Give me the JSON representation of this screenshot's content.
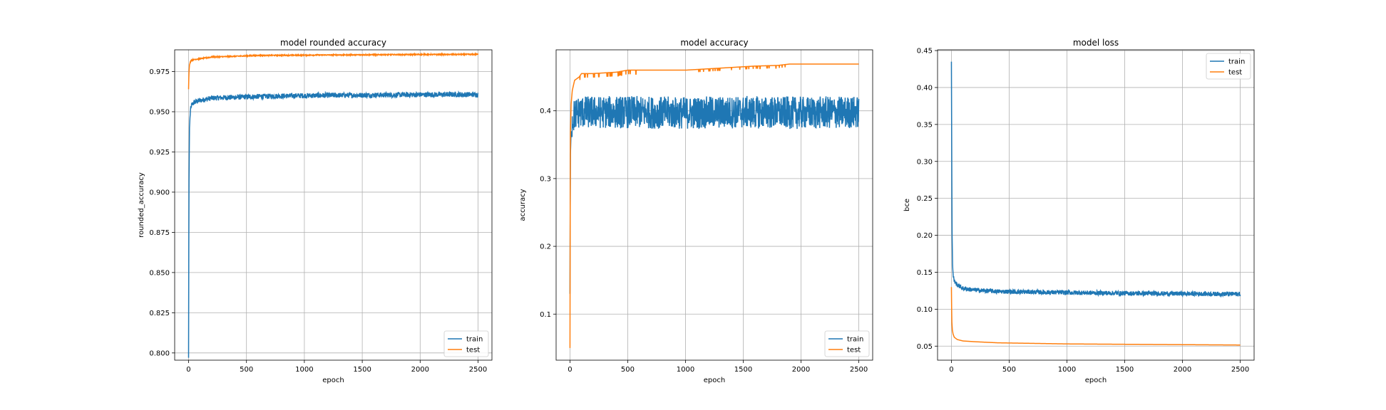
{
  "colors": {
    "train": "#1f77b4",
    "test": "#ff7f0e",
    "grid": "#b0b0b0",
    "axis": "#000000"
  },
  "chart_data": [
    {
      "type": "line",
      "title": "model rounded accuracy",
      "xlabel": "epoch",
      "ylabel": "rounded_accuracy",
      "xlim": [
        -120,
        2620
      ],
      "ylim": [
        0.7955,
        0.9885
      ],
      "xticks": [
        0,
        500,
        1000,
        1500,
        2000,
        2500
      ],
      "yticks": [
        0.8,
        0.825,
        0.85,
        0.875,
        0.9,
        0.925,
        0.95,
        0.975
      ],
      "ytick_labels": [
        "0.800",
        "0.825",
        "0.850",
        "0.875",
        "0.900",
        "0.925",
        "0.950",
        "0.975"
      ],
      "grid": true,
      "legend": "lower-right",
      "series": [
        {
          "name": "train",
          "color": "#1f77b4",
          "noise": 0.0008,
          "x": [
            0,
            3,
            8,
            15,
            25,
            50,
            100,
            200,
            400,
            600,
            800,
            1000,
            1200,
            1500,
            1800,
            2000,
            2200,
            2500
          ],
          "y": [
            0.797,
            0.9,
            0.94,
            0.95,
            0.954,
            0.956,
            0.957,
            0.9585,
            0.959,
            0.9595,
            0.9598,
            0.96,
            0.9602,
            0.9603,
            0.9605,
            0.9606,
            0.9607,
            0.9607
          ]
        },
        {
          "name": "test",
          "color": "#ff7f0e",
          "noise": 0.00015,
          "x": [
            0,
            3,
            8,
            15,
            25,
            50,
            100,
            200,
            400,
            600,
            800,
            1000,
            1200,
            1500,
            1800,
            2000,
            2200,
            2500
          ],
          "y": [
            0.964,
            0.974,
            0.979,
            0.981,
            0.982,
            0.9825,
            0.983,
            0.984,
            0.9845,
            0.985,
            0.9851,
            0.9852,
            0.9853,
            0.9854,
            0.9855,
            0.9856,
            0.9856,
            0.9857
          ]
        }
      ]
    },
    {
      "type": "line",
      "title": "model accuracy",
      "xlabel": "epoch",
      "ylabel": "accuracy",
      "xlim": [
        -120,
        2620
      ],
      "ylim": [
        0.032,
        0.49
      ],
      "xticks": [
        0,
        500,
        1000,
        1500,
        2000,
        2500
      ],
      "yticks": [
        0.1,
        0.2,
        0.3,
        0.4
      ],
      "ytick_labels": [
        "0.1",
        "0.2",
        "0.3",
        "0.4"
      ],
      "grid": true,
      "legend": "lower-right",
      "series": [
        {
          "name": "train",
          "color": "#1f77b4",
          "noise": 0.012,
          "x": [
            0,
            3,
            10,
            20,
            40,
            80,
            200,
            500,
            1000,
            1500,
            2000,
            2500
          ],
          "y": [
            0.13,
            0.33,
            0.37,
            0.385,
            0.395,
            0.398,
            0.398,
            0.398,
            0.397,
            0.398,
            0.397,
            0.398
          ]
        },
        {
          "name": "test",
          "color": "#ff7f0e",
          "noise": 0.0,
          "x": [
            0,
            3,
            10,
            20,
            40,
            80,
            100,
            200,
            300,
            400,
            500,
            600,
            1000,
            1200,
            1400,
            1600,
            1800,
            1900,
            2000,
            2500
          ],
          "y": [
            0.05,
            0.36,
            0.41,
            0.43,
            0.445,
            0.45,
            0.455,
            0.455,
            0.456,
            0.457,
            0.46,
            0.46,
            0.46,
            0.462,
            0.464,
            0.466,
            0.467,
            0.469,
            0.469,
            0.469
          ]
        }
      ]
    },
    {
      "type": "line",
      "title": "model loss",
      "xlabel": "epoch",
      "ylabel": "bce",
      "xlim": [
        -120,
        2620
      ],
      "ylim": [
        0.031,
        0.451
      ],
      "xticks": [
        0,
        500,
        1000,
        1500,
        2000,
        2500
      ],
      "yticks": [
        0.05,
        0.1,
        0.15,
        0.2,
        0.25,
        0.3,
        0.35,
        0.4,
        0.45
      ],
      "ytick_labels": [
        "0.05",
        "0.10",
        "0.15",
        "0.20",
        "0.25",
        "0.30",
        "0.35",
        "0.40",
        "0.45"
      ],
      "grid": true,
      "legend": "upper-right",
      "series": [
        {
          "name": "train",
          "color": "#1f77b4",
          "noise": 0.0015,
          "x": [
            0,
            3,
            6,
            10,
            15,
            25,
            50,
            100,
            200,
            400,
            600,
            800,
            1000,
            1500,
            2000,
            2500
          ],
          "y": [
            0.435,
            0.3,
            0.2,
            0.16,
            0.145,
            0.138,
            0.133,
            0.128,
            0.126,
            0.124,
            0.1235,
            0.123,
            0.1225,
            0.1215,
            0.121,
            0.1205
          ]
        },
        {
          "name": "test",
          "color": "#ff7f0e",
          "noise": 0.0,
          "x": [
            0,
            3,
            8,
            15,
            25,
            50,
            100,
            200,
            400,
            600,
            800,
            1000,
            1500,
            2000,
            2500
          ],
          "y": [
            0.13,
            0.085,
            0.072,
            0.066,
            0.062,
            0.059,
            0.057,
            0.056,
            0.0545,
            0.054,
            0.0535,
            0.053,
            0.0525,
            0.052,
            0.0515
          ]
        }
      ]
    }
  ]
}
